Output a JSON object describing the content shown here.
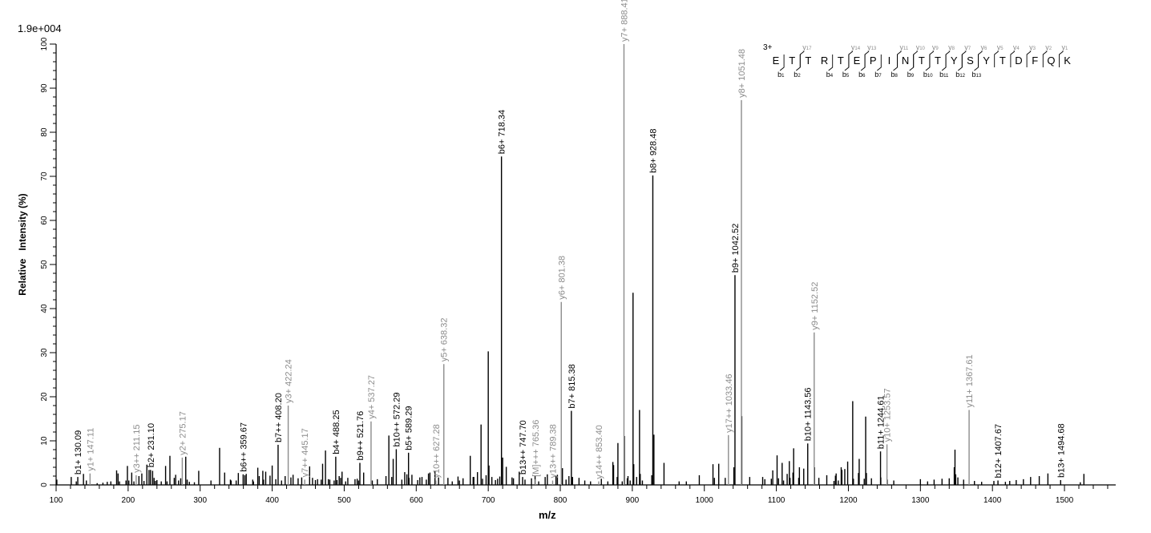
{
  "chart_data": {
    "type": "bar",
    "subtype": "mass-spectrum-stick",
    "title": "",
    "scale_label": "1.9e+004",
    "xlabel": "m/z",
    "ylabel": "Relative   Intensity (%)",
    "xlim": [
      100,
      1560
    ],
    "ylim": [
      0,
      100
    ],
    "x_ticks": [
      100,
      200,
      300,
      400,
      500,
      600,
      700,
      800,
      900,
      1000,
      1100,
      1200,
      1300,
      1400,
      1500
    ],
    "y_ticks": [
      0,
      10,
      20,
      30,
      40,
      50,
      60,
      70,
      80,
      90,
      100
    ],
    "grid": false,
    "colors": {
      "b_ion": "#000000",
      "y_ion": "#8c8c8c",
      "unassigned": "#000000",
      "axis": "#000000"
    },
    "sequence": {
      "charge": "3+",
      "residues": [
        "E",
        "T",
        "T",
        "R",
        "T",
        "E",
        "P",
        "I",
        "N",
        "T",
        "T",
        "Y",
        "S",
        "Y",
        "T",
        "D",
        "F",
        "Q",
        "K"
      ],
      "b_ions": [
        {
          "label": "b1",
          "after": 0
        },
        {
          "label": "b2",
          "after": 1
        },
        {
          "label": "b4",
          "after": 3
        },
        {
          "label": "b5",
          "after": 4
        },
        {
          "label": "b6",
          "after": 5
        },
        {
          "label": "b7",
          "after": 6
        },
        {
          "label": "b8",
          "after": 7
        },
        {
          "label": "b9",
          "after": 8
        },
        {
          "label": "b10",
          "after": 9
        },
        {
          "label": "b11",
          "after": 10
        },
        {
          "label": "b12",
          "after": 11
        },
        {
          "label": "b13",
          "after": 12
        }
      ],
      "y_ions": [
        {
          "label": "y17",
          "after": 1
        },
        {
          "label": "y14",
          "after": 4
        },
        {
          "label": "y13",
          "after": 5
        },
        {
          "label": "y11",
          "after": 7
        },
        {
          "label": "y10",
          "after": 8
        },
        {
          "label": "y9",
          "after": 9
        },
        {
          "label": "y8",
          "after": 10
        },
        {
          "label": "y7",
          "after": 11
        },
        {
          "label": "y6",
          "after": 12
        },
        {
          "label": "y5",
          "after": 13
        },
        {
          "label": "y4",
          "after": 14
        },
        {
          "label": "y3",
          "after": 15
        },
        {
          "label": "y2",
          "after": 16
        },
        {
          "label": "y1",
          "after": 17
        }
      ]
    },
    "annotated_peaks": [
      {
        "label": "b1+ 130.09",
        "mz": 130.09,
        "intensity": 1.8,
        "ion": "b"
      },
      {
        "label": "y1+ 147.11",
        "mz": 147.11,
        "intensity": 2.6,
        "ion": "y"
      },
      {
        "label": "y3++ 211.15",
        "mz": 211.15,
        "intensity": 2.2,
        "ion": "y"
      },
      {
        "label": "b2+ 231.10",
        "mz": 231.1,
        "intensity": 3.4,
        "ion": "b"
      },
      {
        "label": "y2+ 275.17",
        "mz": 275.17,
        "intensity": 6.2,
        "ion": "y"
      },
      {
        "label": "b6++ 359.67",
        "mz": 359.67,
        "intensity": 2.4,
        "ion": "b"
      },
      {
        "label": "b7++ 408.20",
        "mz": 408.2,
        "intensity": 9.1,
        "ion": "b"
      },
      {
        "label": "y3+ 422.24",
        "mz": 422.24,
        "intensity": 18.0,
        "ion": "y"
      },
      {
        "label": "y7++ 445.17",
        "mz": 445.17,
        "intensity": 1.2,
        "ion": "y"
      },
      {
        "label": "b4+ 488.25",
        "mz": 488.25,
        "intensity": 6.4,
        "ion": "b"
      },
      {
        "label": "b9++ 521.76",
        "mz": 521.76,
        "intensity": 5.0,
        "ion": "b"
      },
      {
        "label": "y4+ 537.27",
        "mz": 537.27,
        "intensity": 14.4,
        "ion": "y"
      },
      {
        "label": "b10++ 572.29",
        "mz": 572.29,
        "intensity": 8.1,
        "ion": "b"
      },
      {
        "label": "b5+ 589.29",
        "mz": 589.29,
        "intensity": 7.3,
        "ion": "b"
      },
      {
        "label": "y10++ 627.28",
        "mz": 627.28,
        "intensity": 1.0,
        "ion": "y"
      },
      {
        "label": "y5+ 638.32",
        "mz": 638.32,
        "intensity": 27.4,
        "ion": "y"
      },
      {
        "label": "b6+ 718.34",
        "mz": 718.34,
        "intensity": 74.5,
        "ion": "b"
      },
      {
        "label": "b13++ 747.70",
        "mz": 747.7,
        "intensity": 1.8,
        "ion": "b"
      },
      {
        "label": "[M]+++ 765.36",
        "mz": 765.36,
        "intensity": 1.3,
        "ion": "y"
      },
      {
        "label": "y13++ 789.38",
        "mz": 789.38,
        "intensity": 1.0,
        "ion": "y"
      },
      {
        "label": "y6+ 801.38",
        "mz": 801.38,
        "intensity": 41.5,
        "ion": "y"
      },
      {
        "label": "b7+ 815.38",
        "mz": 815.38,
        "intensity": 16.8,
        "ion": "b"
      },
      {
        "label": "y14++ 853.40",
        "mz": 853.4,
        "intensity": 0.8,
        "ion": "y"
      },
      {
        "label": "y7+ 888.41",
        "mz": 888.41,
        "intensity": 100,
        "ion": "y"
      },
      {
        "label": "b8+ 928.48",
        "mz": 928.48,
        "intensity": 70.2,
        "ion": "b"
      },
      {
        "label": "y17++ 1033.46",
        "mz": 1033.46,
        "intensity": 11.3,
        "ion": "y"
      },
      {
        "label": "b9+ 1042.52",
        "mz": 1042.52,
        "intensity": 47.6,
        "ion": "b"
      },
      {
        "label": "y8+ 1051.48",
        "mz": 1051.48,
        "intensity": 87.3,
        "ion": "y"
      },
      {
        "label": "b10+ 1143.56",
        "mz": 1143.56,
        "intensity": 9.4,
        "ion": "b"
      },
      {
        "label": "y9+ 1152.52",
        "mz": 1152.52,
        "intensity": 34.6,
        "ion": "y"
      },
      {
        "label": "b11+ 1244.61",
        "mz": 1244.61,
        "intensity": 7.6,
        "ion": "b"
      },
      {
        "label": "y10+ 1253.57",
        "mz": 1253.57,
        "intensity": 9.2,
        "ion": "y"
      },
      {
        "label": "y11+ 1367.61",
        "mz": 1367.61,
        "intensity": 17.0,
        "ion": "y"
      },
      {
        "label": "b12+ 1407.67",
        "mz": 1407.67,
        "intensity": 1.0,
        "ion": "b"
      },
      {
        "label": "b13+ 1494.68",
        "mz": 1494.68,
        "intensity": 1.1,
        "ion": "b"
      }
    ],
    "unassigned_peaks": [
      [
        101,
        1.2
      ],
      [
        121,
        1.8
      ],
      [
        128,
        0.8
      ],
      [
        138,
        2.5
      ],
      [
        142,
        1.0
      ],
      [
        157,
        0.4
      ],
      [
        165,
        0.5
      ],
      [
        171,
        0.7
      ],
      [
        176,
        0.8
      ],
      [
        184,
        3.3
      ],
      [
        186,
        2.6
      ],
      [
        188,
        0.8
      ],
      [
        197,
        1.0
      ],
      [
        199,
        4.3
      ],
      [
        201,
        1.0
      ],
      [
        205,
        2.8
      ],
      [
        208,
        0.8
      ],
      [
        215,
        2.0
      ],
      [
        219,
        2.6
      ],
      [
        222,
        0.9
      ],
      [
        226,
        4.6
      ],
      [
        229,
        3.4
      ],
      [
        234,
        3.2
      ],
      [
        236,
        1.6
      ],
      [
        238,
        0.9
      ],
      [
        240,
        1.1
      ],
      [
        246,
        0.8
      ],
      [
        252,
        4.3
      ],
      [
        254,
        0.8
      ],
      [
        258,
        6.6
      ],
      [
        264,
        1.6
      ],
      [
        266,
        2.3
      ],
      [
        270,
        1.0
      ],
      [
        273,
        1.5
      ],
      [
        280,
        6.4
      ],
      [
        282,
        1.2
      ],
      [
        285,
        0.7
      ],
      [
        292,
        0.6
      ],
      [
        298,
        3.2
      ],
      [
        315,
        1.0
      ],
      [
        327,
        8.4
      ],
      [
        334,
        2.8
      ],
      [
        342,
        1.2
      ],
      [
        343,
        1.0
      ],
      [
        350,
        1.0
      ],
      [
        353,
        2.7
      ],
      [
        362,
        2.2
      ],
      [
        364,
        2.5
      ],
      [
        373,
        1.2
      ],
      [
        374,
        0.8
      ],
      [
        380,
        3.9
      ],
      [
        382,
        2.0
      ],
      [
        387,
        3.2
      ],
      [
        388,
        1.2
      ],
      [
        391,
        3.0
      ],
      [
        397,
        2.1
      ],
      [
        400,
        4.4
      ],
      [
        405,
        1.3
      ],
      [
        413,
        1.0
      ],
      [
        418,
        2.0
      ],
      [
        426,
        1.7
      ],
      [
        429,
        2.3
      ],
      [
        436,
        1.5
      ],
      [
        441,
        1.7
      ],
      [
        452,
        4.2
      ],
      [
        456,
        1.6
      ],
      [
        460,
        1.1
      ],
      [
        463,
        1.3
      ],
      [
        468,
        1.2
      ],
      [
        470,
        4.8
      ],
      [
        474,
        7.8
      ],
      [
        478,
        1.3
      ],
      [
        480,
        1.2
      ],
      [
        486,
        1.0
      ],
      [
        490,
        1.1
      ],
      [
        493,
        2.0
      ],
      [
        495,
        1.6
      ],
      [
        497,
        3.0
      ],
      [
        502,
        0.8
      ],
      [
        505,
        1.6
      ],
      [
        515,
        1.3
      ],
      [
        518,
        1.4
      ],
      [
        520,
        1.0
      ],
      [
        527,
        2.8
      ],
      [
        539,
        1.0
      ],
      [
        546,
        1.3
      ],
      [
        558,
        2.0
      ],
      [
        562,
        11.2
      ],
      [
        566,
        1.8
      ],
      [
        568,
        5.9
      ],
      [
        580,
        1.2
      ],
      [
        584,
        2.9
      ],
      [
        587,
        2.4
      ],
      [
        590,
        1.6
      ],
      [
        594,
        2.3
      ],
      [
        602,
        1.1
      ],
      [
        605,
        1.7
      ],
      [
        608,
        1.8
      ],
      [
        614,
        1.2
      ],
      [
        617,
        2.6
      ],
      [
        619,
        2.8
      ],
      [
        626,
        3.1
      ],
      [
        631,
        1.7
      ],
      [
        644,
        1.6
      ],
      [
        650,
        0.8
      ],
      [
        658,
        1.9
      ],
      [
        660,
        1.0
      ],
      [
        665,
        1.5
      ],
      [
        675,
        6.6
      ],
      [
        679,
        1.8
      ],
      [
        680,
        1.8
      ],
      [
        685,
        2.9
      ],
      [
        690,
        13.7
      ],
      [
        692,
        1.4
      ],
      [
        697,
        2.2
      ],
      [
        700,
        30.3
      ],
      [
        701,
        4.4
      ],
      [
        705,
        1.8
      ],
      [
        710,
        1.1
      ],
      [
        713,
        1.4
      ],
      [
        716,
        1.9
      ],
      [
        720,
        6.2
      ],
      [
        725,
        4.1
      ],
      [
        733,
        1.7
      ],
      [
        735,
        1.5
      ],
      [
        743,
        3.0
      ],
      [
        751,
        1.2
      ],
      [
        760,
        1.5
      ],
      [
        765,
        2.0
      ],
      [
        770,
        0.8
      ],
      [
        779,
        1.8
      ],
      [
        782,
        2.4
      ],
      [
        794,
        2.0
      ],
      [
        796,
        2.3
      ],
      [
        803,
        3.8
      ],
      [
        808,
        1.2
      ],
      [
        812,
        2.0
      ],
      [
        817,
        1.8
      ],
      [
        826,
        1.6
      ],
      [
        834,
        1.0
      ],
      [
        842,
        0.8
      ],
      [
        857,
        1.4
      ],
      [
        866,
        0.8
      ],
      [
        873,
        5.2
      ],
      [
        874,
        4.5
      ],
      [
        879,
        1.8
      ],
      [
        880,
        9.5
      ],
      [
        886,
        0.8
      ],
      [
        889,
        11.1
      ],
      [
        893,
        1.5
      ],
      [
        894,
        2.0
      ],
      [
        897,
        1.0
      ],
      [
        901,
        43.6
      ],
      [
        902,
        4.7
      ],
      [
        906,
        1.8
      ],
      [
        910,
        17.0
      ],
      [
        911,
        2.5
      ],
      [
        914,
        1.0
      ],
      [
        927,
        2.2
      ],
      [
        930,
        11.4
      ],
      [
        944,
        5.0
      ],
      [
        965,
        0.8
      ],
      [
        975,
        0.8
      ],
      [
        993,
        2.2
      ],
      [
        1012,
        4.7
      ],
      [
        1014,
        1.6
      ],
      [
        1020,
        4.8
      ],
      [
        1029,
        1.6
      ],
      [
        1041,
        4.0
      ],
      [
        1052,
        15.6
      ],
      [
        1063,
        1.8
      ],
      [
        1081,
        1.8
      ],
      [
        1084,
        1.3
      ],
      [
        1093,
        1.4
      ],
      [
        1095,
        3.3
      ],
      [
        1101,
        6.7
      ],
      [
        1103,
        1.5
      ],
      [
        1108,
        5.0
      ],
      [
        1110,
        1.0
      ],
      [
        1115,
        2.5
      ],
      [
        1118,
        5.4
      ],
      [
        1119,
        1.6
      ],
      [
        1123,
        2.8
      ],
      [
        1124,
        8.3
      ],
      [
        1131,
        1.6
      ],
      [
        1132,
        4.0
      ],
      [
        1138,
        3.7
      ],
      [
        1153,
        4.0
      ],
      [
        1159,
        1.6
      ],
      [
        1170,
        2.2
      ],
      [
        1180,
        0.9
      ],
      [
        1182,
        2.1
      ],
      [
        1183,
        2.6
      ],
      [
        1186,
        1.0
      ],
      [
        1190,
        4.0
      ],
      [
        1191,
        3.4
      ],
      [
        1195,
        3.6
      ],
      [
        1199,
        5.3
      ],
      [
        1206,
        19.0
      ],
      [
        1207,
        1.4
      ],
      [
        1214,
        2.7
      ],
      [
        1215,
        5.9
      ],
      [
        1222,
        1.4
      ],
      [
        1224,
        15.5
      ],
      [
        1225,
        2.7
      ],
      [
        1232,
        1.5
      ],
      [
        1245,
        1.7
      ],
      [
        1254,
        1.2
      ],
      [
        1263,
        1.0
      ],
      [
        1300,
        1.3
      ],
      [
        1310,
        0.8
      ],
      [
        1319,
        1.2
      ],
      [
        1330,
        1.4
      ],
      [
        1340,
        1.5
      ],
      [
        1347,
        4.0
      ],
      [
        1348,
        8.0
      ],
      [
        1349,
        2.4
      ],
      [
        1352,
        1.7
      ],
      [
        1360,
        1.2
      ],
      [
        1375,
        0.9
      ],
      [
        1385,
        0.7
      ],
      [
        1402,
        0.9
      ],
      [
        1418,
        0.7
      ],
      [
        1424,
        0.9
      ],
      [
        1433,
        1.1
      ],
      [
        1443,
        1.3
      ],
      [
        1453,
        1.8
      ],
      [
        1465,
        2.0
      ],
      [
        1477,
        2.6
      ],
      [
        1522,
        0.6
      ],
      [
        1527,
        2.5
      ]
    ]
  }
}
